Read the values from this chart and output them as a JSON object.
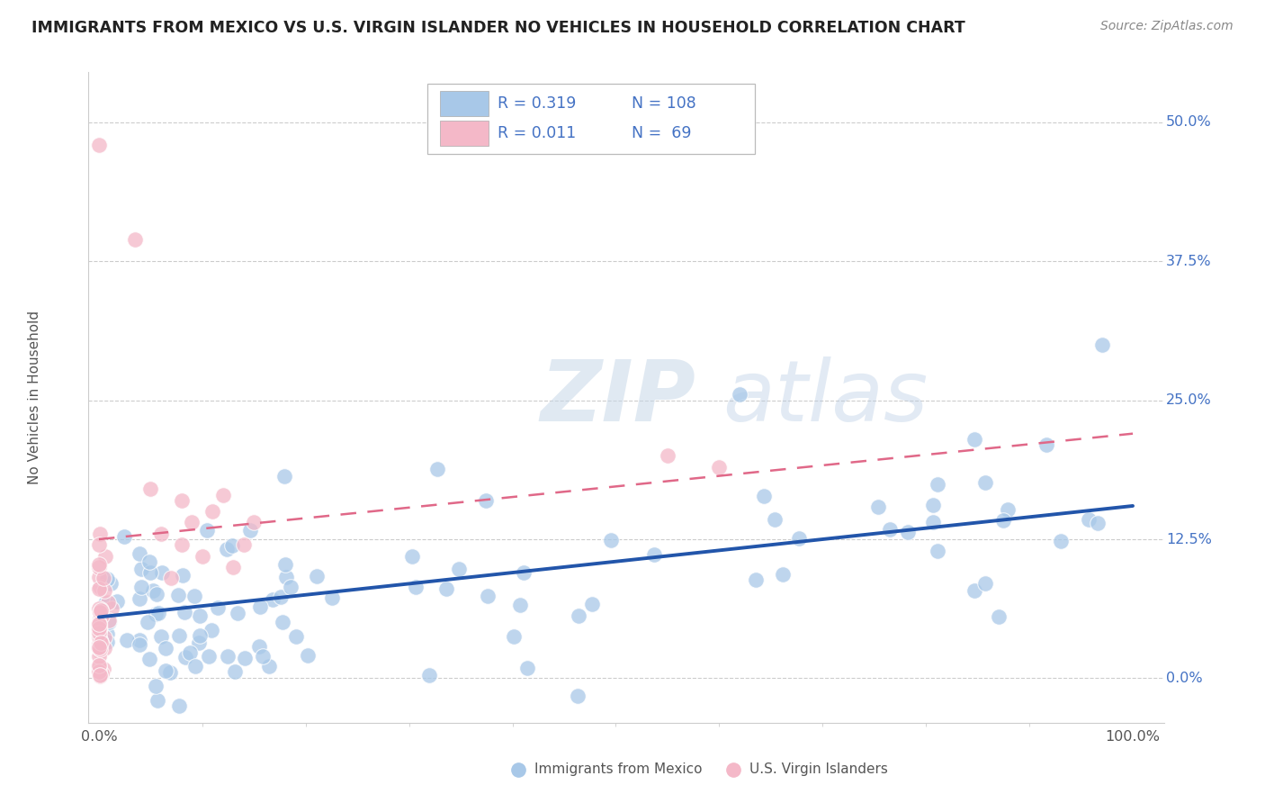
{
  "title": "IMMIGRANTS FROM MEXICO VS U.S. VIRGIN ISLANDER NO VEHICLES IN HOUSEHOLD CORRELATION CHART",
  "source": "Source: ZipAtlas.com",
  "ylabel": "No Vehicles in Household",
  "xlim": [
    -0.01,
    1.03
  ],
  "ylim": [
    -0.04,
    0.545
  ],
  "yticks": [
    0.0,
    0.125,
    0.25,
    0.375,
    0.5
  ],
  "ytick_labels": [
    "0.0%",
    "12.5%",
    "25.0%",
    "37.5%",
    "50.0%"
  ],
  "xticks": [
    0.0,
    1.0
  ],
  "xtick_labels": [
    "0.0%",
    "100.0%"
  ],
  "blue_color": "#a8c8e8",
  "pink_color": "#f4b8c8",
  "trend_blue": "#2255aa",
  "trend_pink": "#e06888",
  "blue_trend_y_start": 0.055,
  "blue_trend_y_end": 0.155,
  "pink_trend_y_start": 0.125,
  "pink_trend_y_end": 0.22,
  "watermark_zip": "ZIP",
  "watermark_atlas": "atlas",
  "grid_color": "#cccccc",
  "spine_color": "#cccccc",
  "title_color": "#222222",
  "source_color": "#888888",
  "label_color": "#555555",
  "tick_color": "#4472c4",
  "legend_r_color": "#4472c4",
  "legend_n_color": "#4472c4"
}
